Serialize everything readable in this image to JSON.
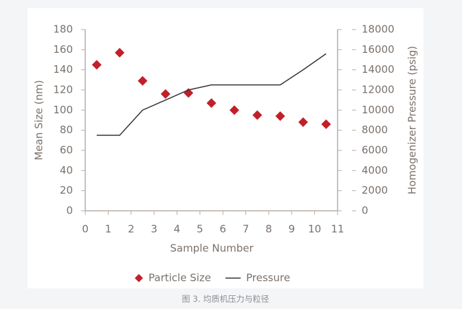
{
  "chart_data": {
    "type": "combo",
    "x_label": "Sample Number",
    "y_label": "Mean Size (nm)",
    "y2_label": "Homogenizer Pressure (psig)",
    "caption": "图 3. 均质机压力与粒径",
    "x": [
      0.5,
      1.5,
      2.5,
      3.5,
      4.5,
      5.5,
      6.5,
      7.5,
      8.5,
      9.5,
      10.5
    ],
    "series": [
      {
        "name": "Particle Size",
        "color": "#c0202a",
        "type": "scatter",
        "values": [
          145,
          157,
          129,
          116,
          117,
          107,
          100,
          95,
          94,
          88,
          86
        ]
      },
      {
        "name": "Pressure",
        "color": "#333333",
        "type": "line",
        "axis": "y2",
        "values": [
          7500,
          7500,
          10000,
          11000,
          12000,
          12500,
          12500,
          12500,
          12500,
          14000,
          15600
        ]
      }
    ],
    "xlim": [
      0,
      11
    ],
    "xticks": [
      0,
      1,
      2,
      3,
      4,
      5,
      6,
      7,
      8,
      9,
      10,
      11
    ],
    "ylim": [
      0,
      180
    ],
    "yticks": [
      0,
      20,
      40,
      60,
      80,
      100,
      120,
      140,
      160,
      180
    ],
    "y2lim": [
      0,
      18000
    ],
    "y2ticks": [
      0,
      2000,
      4000,
      6000,
      8000,
      10000,
      12000,
      14000,
      16000,
      18000
    ],
    "legend": "bottom"
  }
}
